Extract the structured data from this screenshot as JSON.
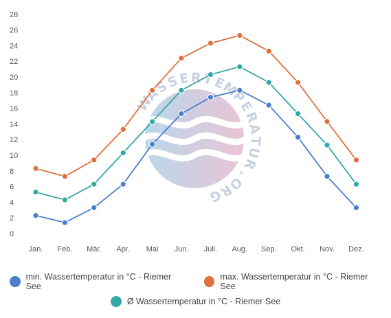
{
  "chart_data": {
    "type": "line",
    "categories": [
      "Jan.",
      "Feb.",
      "Mär.",
      "Apr.",
      "Mai",
      "Jun.",
      "Juli.",
      "Aug.",
      "Sep.",
      "Okt.",
      "Nov.",
      "Dez."
    ],
    "series": [
      {
        "name": "min. Wassertemperatur in °C - Riemer See",
        "color": "#4a7fd0",
        "values": [
          2.3,
          1.4,
          3.3,
          6.3,
          11.4,
          15.3,
          17.4,
          18.3,
          16.4,
          12.3,
          7.3,
          3.3
        ]
      },
      {
        "name": "max. Wassertemperatur in °C - Riemer See",
        "color": "#e0703e",
        "values": [
          8.3,
          7.3,
          9.4,
          13.3,
          18.3,
          22.4,
          24.3,
          25.3,
          23.3,
          19.3,
          14.3,
          9.4
        ]
      },
      {
        "name": "Ø Wassertemperatur in °C - Riemer See",
        "color": "#33a8aa",
        "values": [
          5.3,
          4.3,
          6.3,
          10.3,
          14.3,
          18.3,
          20.3,
          21.3,
          19.3,
          15.3,
          11.3,
          6.3
        ]
      }
    ],
    "yticks": [
      0,
      2,
      4,
      6,
      8,
      10,
      12,
      14,
      16,
      18,
      20,
      22,
      24,
      26,
      28
    ],
    "ylim": [
      0,
      28
    ],
    "grid": false,
    "legend_position": "bottom",
    "title": "",
    "xlabel": "",
    "ylabel": ""
  },
  "watermark": {
    "text": "WASSERTEMPERATUR.ORG"
  }
}
